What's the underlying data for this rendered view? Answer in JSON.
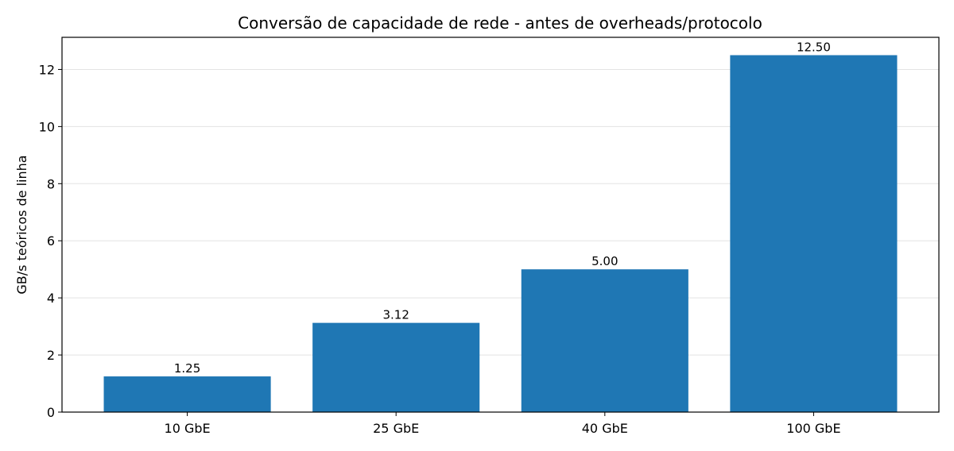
{
  "chart_data": {
    "type": "bar",
    "title": "Conversão de capacidade de rede - antes de overheads/protocolo",
    "xlabel": "",
    "ylabel": "GB/s teóricos de linha",
    "categories": [
      "10 GbE",
      "25 GbE",
      "40 GbE",
      "100 GbE"
    ],
    "values": [
      1.25,
      3.125,
      5.0,
      12.5
    ],
    "value_labels": [
      "1.25",
      "3.12",
      "5.00",
      "12.50"
    ],
    "ylim": [
      0,
      13.125
    ],
    "yticks": [
      0,
      2,
      4,
      6,
      8,
      10,
      12
    ],
    "grid": "horizontal",
    "bar_color": "#1f77b4"
  }
}
